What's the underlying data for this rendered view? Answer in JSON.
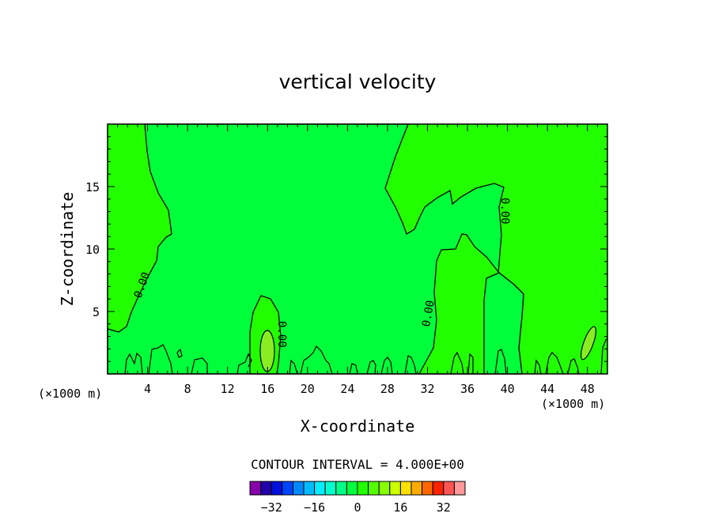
{
  "chart_data": {
    "type": "heatmap",
    "title": "vertical velocity",
    "xlabel": "X-coordinate",
    "ylabel": "Z-coordinate",
    "x_unit_left": "(×1000 m)",
    "x_unit_right": "(×1000 m)",
    "xlim": [
      0,
      50
    ],
    "ylim": [
      0,
      20
    ],
    "x_ticks": [
      4,
      8,
      12,
      16,
      20,
      24,
      28,
      32,
      36,
      40,
      44,
      48
    ],
    "y_ticks": [
      5,
      10,
      15
    ],
    "contour_interval_label": "CONTOUR INTERVAL = 4.000E+00",
    "contour_labels": [
      "0.00",
      "0.00",
      "0.00",
      "0.00"
    ],
    "regions": [
      {
        "level": "0 to 4",
        "color": "#22ff00",
        "location": "upper-left and right (x 0-5, x 30-50)"
      },
      {
        "level": "-4 to 0",
        "color": "#00ff30",
        "location": "central band and lower middle"
      },
      {
        "level": "4 to 8",
        "color": "#88ee22",
        "location": "small cells near x 16 and x 48, z 1-4"
      }
    ],
    "colorbar": {
      "colors": [
        "#8800aa",
        "#2200aa",
        "#0010dd",
        "#0044ff",
        "#0088ff",
        "#00bbff",
        "#00eeff",
        "#00ffcc",
        "#00ff88",
        "#00ff40",
        "#22ff00",
        "#55ff00",
        "#88ff00",
        "#ccff00",
        "#ffe000",
        "#ffaa00",
        "#ff6600",
        "#ff2200",
        "#ff5555",
        "#ff9999"
      ],
      "tick_labels": [
        "−32",
        "−16",
        "0",
        "16",
        "32"
      ],
      "tick_values": [
        -32,
        -16,
        0,
        16,
        32
      ],
      "range": [
        -40,
        40
      ]
    }
  }
}
